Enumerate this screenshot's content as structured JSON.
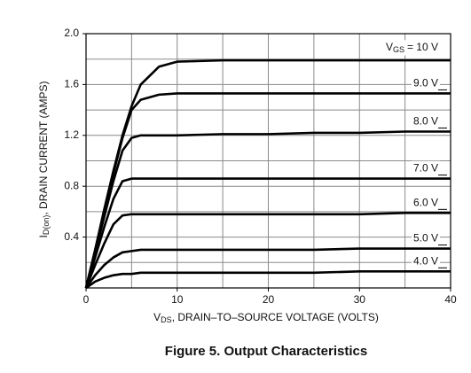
{
  "chart_data": {
    "type": "line",
    "caption": "Figure 5. Output Characteristics",
    "x_label": {
      "main": "V",
      "sub": "DS",
      "rest": ", DRAIN–TO–SOURCE VOLTAGE (VOLTS)"
    },
    "y_label": {
      "main": "I",
      "sub": "D(on)",
      "rest": ", DRAIN CURRENT (AMPS)"
    },
    "legend_symbol": {
      "main": "V",
      "sub": "GS"
    },
    "x": [
      0,
      1,
      2,
      3,
      4,
      5,
      6,
      8,
      10,
      15,
      20,
      25,
      30,
      35,
      40
    ],
    "series": [
      {
        "name": "= 10 V",
        "color": "#000000",
        "values": [
          0,
          0.3,
          0.62,
          0.92,
          1.2,
          1.43,
          1.6,
          1.74,
          1.78,
          1.79,
          1.79,
          1.79,
          1.79,
          1.79,
          1.79
        ]
      },
      {
        "name": "9.0 V",
        "color": "#000000",
        "values": [
          0,
          0.3,
          0.6,
          0.9,
          1.18,
          1.4,
          1.48,
          1.52,
          1.53,
          1.53,
          1.53,
          1.53,
          1.53,
          1.53,
          1.53
        ]
      },
      {
        "name": "8.0 V",
        "color": "#000000",
        "values": [
          0,
          0.28,
          0.56,
          0.84,
          1.08,
          1.18,
          1.2,
          1.2,
          1.2,
          1.21,
          1.21,
          1.22,
          1.22,
          1.23,
          1.23
        ]
      },
      {
        "name": "7.0 V",
        "color": "#000000",
        "values": [
          0,
          0.24,
          0.48,
          0.7,
          0.84,
          0.86,
          0.86,
          0.86,
          0.86,
          0.86,
          0.86,
          0.86,
          0.86,
          0.86,
          0.86
        ]
      },
      {
        "name": "6.0 V",
        "color": "#000000",
        "values": [
          0,
          0.18,
          0.35,
          0.5,
          0.57,
          0.58,
          0.58,
          0.58,
          0.58,
          0.58,
          0.58,
          0.58,
          0.58,
          0.59,
          0.59
        ]
      },
      {
        "name": "5.0 V",
        "color": "#000000",
        "values": [
          0,
          0.1,
          0.18,
          0.24,
          0.28,
          0.29,
          0.3,
          0.3,
          0.3,
          0.3,
          0.3,
          0.3,
          0.31,
          0.31,
          0.31
        ]
      },
      {
        "name": "4.0 V",
        "color": "#000000",
        "values": [
          0,
          0.05,
          0.08,
          0.1,
          0.11,
          0.11,
          0.12,
          0.12,
          0.12,
          0.12,
          0.12,
          0.12,
          0.13,
          0.13,
          0.13
        ]
      }
    ],
    "xlim": [
      0,
      40
    ],
    "xticks": [
      0,
      10,
      20,
      30,
      40
    ],
    "ylim": [
      0,
      2
    ],
    "yticks": [
      0.4,
      0.8,
      1.2,
      1.6,
      {
        "value": 2,
        "label": "2.0"
      }
    ],
    "xgrid": [
      5,
      10,
      15,
      20,
      25,
      30,
      35
    ],
    "ygrid": [
      0.2,
      0.4,
      0.6,
      0.8,
      1.0,
      1.2,
      1.4,
      1.6,
      1.8
    ],
    "grid_color": "#8a8a8a"
  }
}
